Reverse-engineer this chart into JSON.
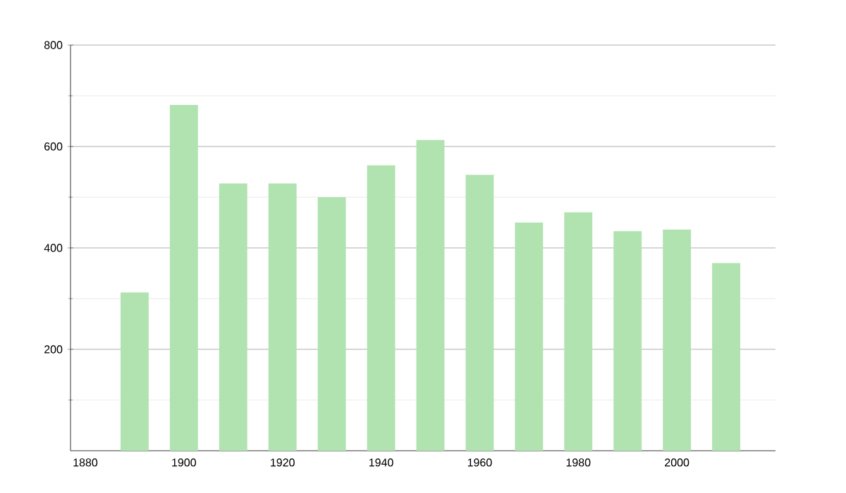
{
  "chart_data": {
    "type": "bar",
    "x": [
      1890,
      1900,
      1910,
      1920,
      1930,
      1940,
      1950,
      1960,
      1970,
      1980,
      1990,
      2000,
      2010
    ],
    "values": [
      312,
      682,
      527,
      527,
      500,
      563,
      613,
      544,
      450,
      470,
      433,
      436,
      370
    ],
    "color": "#b0e3b0",
    "xlim": [
      1877,
      2020
    ],
    "xticks": [
      1880,
      1900,
      1920,
      1940,
      1960,
      1980,
      2000
    ],
    "ylim": [
      0,
      800
    ],
    "yticks": [
      {
        "value": 100,
        "label": null
      },
      200,
      {
        "value": 300,
        "label": null
      },
      400,
      {
        "value": 500,
        "label": null
      },
      600,
      {
        "value": 700,
        "label": null
      },
      800
    ],
    "grid": "y"
  }
}
